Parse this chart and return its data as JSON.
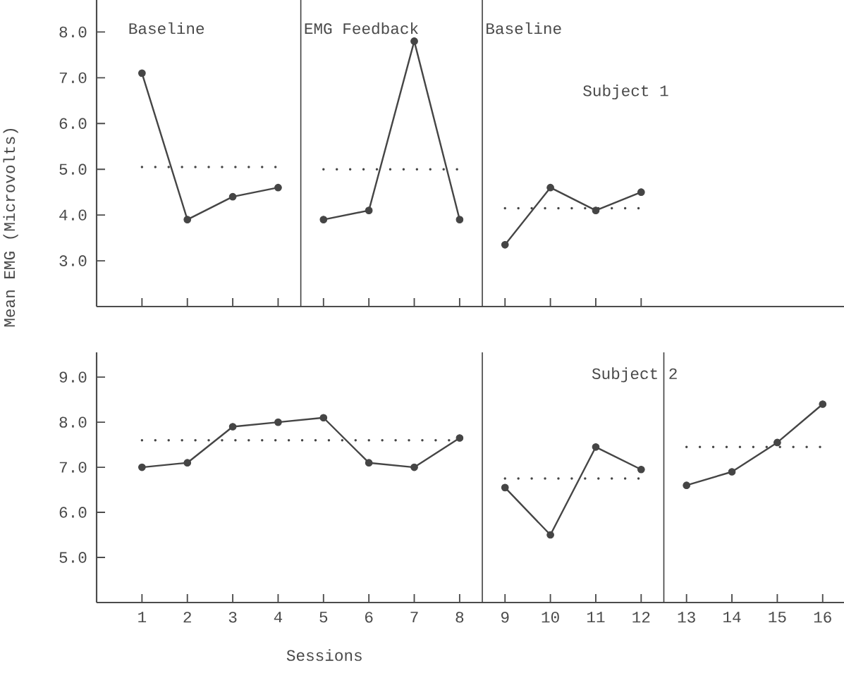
{
  "chart_data": [
    {
      "type": "line",
      "ylabel": "Mean EMG (Microvolts)",
      "annotations": [
        "Baseline",
        "Subject 1"
      ],
      "xlim": [
        0,
        16.47
      ],
      "xticks": [
        {
          "value": 1,
          "label": null
        },
        {
          "value": 2,
          "label": null
        },
        {
          "value": 3,
          "label": null
        },
        {
          "value": 4,
          "label": null
        },
        {
          "value": 5,
          "label": null
        },
        {
          "value": 6,
          "label": null
        },
        {
          "value": 7,
          "label": null
        },
        {
          "value": 8,
          "label": null
        },
        {
          "value": 9,
          "label": null
        },
        {
          "value": 10,
          "label": null
        },
        {
          "value": 11,
          "label": null
        },
        {
          "value": 12,
          "label": null
        }
      ],
      "ylim": [
        2.0,
        8.7
      ],
      "yticks": [
        {
          "value": 3,
          "label": "3.0"
        },
        {
          "value": 4,
          "label": "4.0"
        },
        {
          "value": 5,
          "label": "5.0"
        },
        {
          "value": 6,
          "label": "6.0"
        },
        {
          "value": 7,
          "label": "7.0"
        },
        {
          "value": 8,
          "label": "8.0"
        }
      ],
      "tick_labels": "y",
      "marker": "circle",
      "line_style": "solid",
      "ref_lines": [
        {
          "axis": "x",
          "value": 4.5,
          "label": "EMG Feedback"
        },
        {
          "axis": "x",
          "value": 8.5,
          "label": "Baseline"
        }
      ],
      "series": [
        {
          "color": "#454545",
          "x": [
            1,
            2,
            3,
            4
          ],
          "values": [
            7.1,
            3.9,
            4.4,
            4.6
          ]
        },
        {
          "color": "#454545",
          "x": [
            5,
            6,
            7,
            8
          ],
          "values": [
            3.9,
            4.1,
            7.8,
            3.9
          ]
        },
        {
          "color": "#454545",
          "x": [
            9,
            10,
            11,
            12
          ],
          "values": [
            3.35,
            4.6,
            4.1,
            4.5
          ]
        },
        {
          "color": "#454545",
          "x": [
            1,
            4
          ],
          "values": [
            5.05,
            5.05
          ],
          "marker": "none",
          "line_style": "dotted"
        },
        {
          "color": "#454545",
          "x": [
            5,
            8
          ],
          "values": [
            5.0,
            5.0
          ],
          "marker": "none",
          "line_style": "dotted"
        },
        {
          "color": "#454545",
          "x": [
            9,
            12
          ],
          "values": [
            4.15,
            4.15
          ],
          "marker": "none",
          "line_style": "dotted"
        }
      ]
    },
    {
      "type": "line",
      "xlabel": "Sessions",
      "annotations": [
        "Subject 2"
      ],
      "xlim": [
        0,
        16.47
      ],
      "xticks": [
        1,
        2,
        3,
        4,
        5,
        6,
        7,
        8,
        9,
        10,
        11,
        12,
        13,
        14,
        15,
        16
      ],
      "ylim": [
        4.0,
        9.55
      ],
      "yticks": [
        {
          "value": 5,
          "label": "5.0"
        },
        {
          "value": 6,
          "label": "6.0"
        },
        {
          "value": 7,
          "label": "7.0"
        },
        {
          "value": 8,
          "label": "8.0"
        },
        {
          "value": 9,
          "label": "9.0"
        }
      ],
      "marker": "circle",
      "line_style": "solid",
      "ref_lines": [
        {
          "axis": "x",
          "value": 8.5
        },
        {
          "axis": "x",
          "value": 12.5
        }
      ],
      "series": [
        {
          "color": "#454545",
          "x": [
            1,
            2,
            3,
            4,
            5,
            6,
            7,
            8
          ],
          "values": [
            7.0,
            7.1,
            7.9,
            8.0,
            8.1,
            7.1,
            7.0,
            7.65
          ]
        },
        {
          "color": "#454545",
          "x": [
            9,
            10,
            11,
            12
          ],
          "values": [
            6.55,
            5.5,
            7.45,
            6.95
          ]
        },
        {
          "color": "#454545",
          "x": [
            13,
            14,
            15,
            16
          ],
          "values": [
            6.6,
            6.9,
            7.55,
            8.4
          ]
        },
        {
          "color": "#454545",
          "x": [
            1,
            8
          ],
          "values": [
            7.6,
            7.6
          ],
          "marker": "none",
          "line_style": "dotted"
        },
        {
          "color": "#454545",
          "x": [
            9,
            12
          ],
          "values": [
            6.75,
            6.75
          ],
          "marker": "none",
          "line_style": "dotted"
        },
        {
          "color": "#454545",
          "x": [
            13,
            16
          ],
          "values": [
            7.45,
            7.45
          ],
          "marker": "none",
          "line_style": "dotted"
        }
      ]
    }
  ]
}
